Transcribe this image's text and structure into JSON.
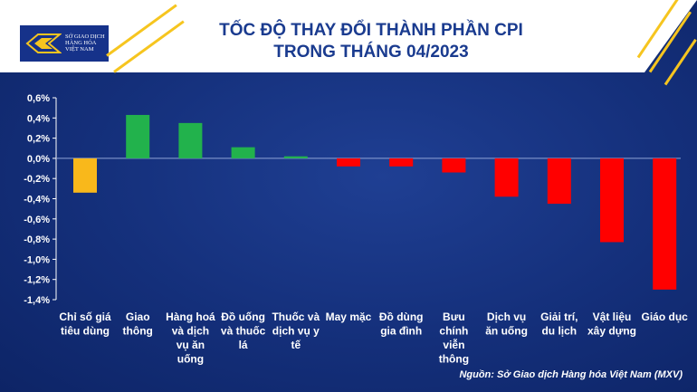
{
  "header": {
    "logo_text": [
      "SỞ GIAO DỊCH",
      "HÀNG HÓA",
      "VIỆT NAM"
    ],
    "title_line1": "TỐC ĐỘ THAY ĐỔI THÀNH PHẦN CPI",
    "title_line2": "TRONG THÁNG 04/2023"
  },
  "source": "Nguồn: Sở Giao dịch Hàng hóa Việt Nam (MXV)",
  "colors": {
    "positive": "#22b24c",
    "negative": "#ff0000",
    "headline": "#f9b81b",
    "title": "#1a3b8f",
    "accent_stripe": "#f6c51f"
  },
  "chart_data": {
    "type": "bar",
    "title": "TỐC ĐỘ THAY ĐỔI THÀNH PHẦN CPI TRONG THÁNG 04/2023",
    "categories": [
      [
        "Chỉ số giá",
        "tiêu dùng"
      ],
      [
        "Giao",
        "thông"
      ],
      [
        "Hàng hoá",
        "và dịch",
        "vụ ăn",
        "uống"
      ],
      [
        "Đồ uống",
        "và thuốc",
        "lá"
      ],
      [
        "Thuốc và",
        "dịch vụ y",
        "tế"
      ],
      [
        "May mặc"
      ],
      [
        "Đồ dùng",
        "gia đình"
      ],
      [
        "Bưu",
        "chính",
        "viễn",
        "thông"
      ],
      [
        "Dịch vụ",
        "ăn uống"
      ],
      [
        "Giải trí,",
        "du lịch"
      ],
      [
        "Vật liệu",
        "xây dựng"
      ],
      [
        "Giáo dục"
      ]
    ],
    "values": [
      -0.34,
      0.43,
      0.35,
      0.11,
      0.02,
      -0.08,
      -0.08,
      -0.14,
      -0.38,
      -0.45,
      -0.83,
      -1.3
    ],
    "ylim": [
      -1.4,
      0.6
    ],
    "yticks": [
      0.6,
      0.4,
      0.2,
      0.0,
      -0.2,
      -0.4,
      -0.6,
      -0.8,
      -1.0,
      -1.2,
      -1.4
    ],
    "ytick_labels": [
      "0,6%",
      "0,4%",
      "0,2%",
      "0,0%",
      "-0,2%",
      "-0,4%",
      "-0,6%",
      "-0,8%",
      "-1,0%",
      "-1,2%",
      "-1,4%"
    ],
    "grid": false,
    "legend": "none"
  }
}
